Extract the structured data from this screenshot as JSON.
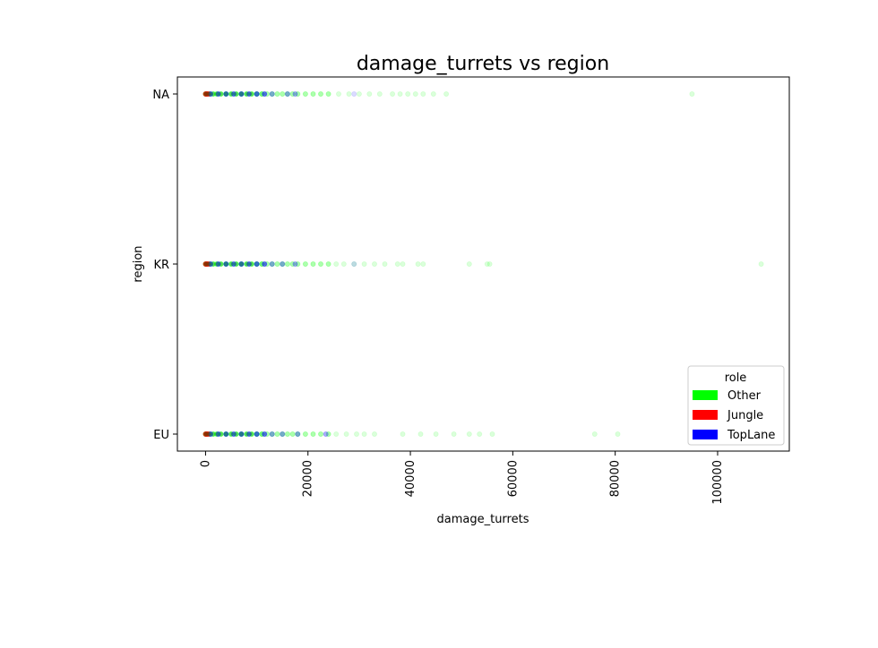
{
  "chart_data": {
    "type": "scatter",
    "title": "damage_turrets vs region",
    "xlabel": "damage_turrets",
    "ylabel": "region",
    "xlim": [
      -5500,
      114000
    ],
    "x_ticks": [
      0,
      20000,
      40000,
      60000,
      80000,
      100000
    ],
    "x_tick_labels": [
      "0",
      "20000",
      "40000",
      "60000",
      "80000",
      "100000"
    ],
    "categories": [
      "EU",
      "KR",
      "NA"
    ],
    "grid": false,
    "legend": {
      "title": "role",
      "placement": "lower-right",
      "entries": [
        {
          "label": "Other",
          "color": "#00ff00"
        },
        {
          "label": "Jungle",
          "color": "#ff0000"
        },
        {
          "label": "TopLane",
          "color": "#0000ff"
        }
      ]
    },
    "series": [
      {
        "name": "Other",
        "color": "#00ff00",
        "points": [
          {
            "region": "NA",
            "x": [
              0,
              300,
              800,
              1500,
              2200,
              3000,
              4000,
              5000,
              6000,
              7000,
              8000,
              9000,
              10000,
              11000,
              12000,
              13000,
              14000,
              15000,
              16000,
              17000,
              18000,
              19500,
              21000,
              22500,
              24000,
              26000,
              28000,
              30000,
              32000,
              34000,
              36500,
              38000,
              39500,
              41000,
              42500,
              44500,
              47000,
              95000
            ]
          },
          {
            "region": "KR",
            "x": [
              0,
              300,
              800,
              1500,
              2200,
              3000,
              4000,
              5000,
              6000,
              7000,
              8000,
              9000,
              10000,
              11000,
              12000,
              13000,
              14000,
              15000,
              16000,
              17000,
              18000,
              19500,
              21000,
              22500,
              24000,
              25500,
              27000,
              29000,
              31000,
              33000,
              35000,
              37500,
              38500,
              41500,
              42500,
              51500,
              55000,
              55500,
              108500
            ]
          },
          {
            "region": "EU",
            "x": [
              0,
              300,
              800,
              1500,
              2200,
              3000,
              4000,
              5000,
              6000,
              7000,
              8000,
              9000,
              10000,
              11000,
              12000,
              13000,
              14000,
              15000,
              16000,
              17000,
              18000,
              19500,
              21000,
              22500,
              24000,
              25500,
              27500,
              29500,
              31000,
              33000,
              38500,
              42000,
              45000,
              48500,
              51500,
              53500,
              56000,
              76000,
              80500
            ]
          }
        ]
      },
      {
        "name": "Jungle",
        "color": "#ff0000",
        "points": [
          {
            "region": "NA",
            "x": [
              0,
              100,
              200,
              400,
              600
            ]
          },
          {
            "region": "KR",
            "x": [
              0,
              100,
              200,
              400,
              600
            ]
          },
          {
            "region": "EU",
            "x": [
              0,
              100,
              200,
              400,
              600
            ]
          }
        ]
      },
      {
        "name": "TopLane",
        "color": "#0000ff",
        "points": [
          {
            "region": "NA",
            "x": [
              1000,
              2500,
              4000,
              5500,
              7000,
              8500,
              10000,
              11500,
              13000,
              16000,
              17500,
              29000
            ]
          },
          {
            "region": "KR",
            "x": [
              1000,
              2500,
              4000,
              5500,
              7000,
              8500,
              10000,
              11500,
              13000,
              15000,
              17500,
              29000
            ]
          },
          {
            "region": "EU",
            "x": [
              1000,
              2500,
              4000,
              5500,
              7000,
              8500,
              10000,
              11500,
              13000,
              15000,
              18000,
              23500
            ]
          }
        ]
      }
    ]
  }
}
